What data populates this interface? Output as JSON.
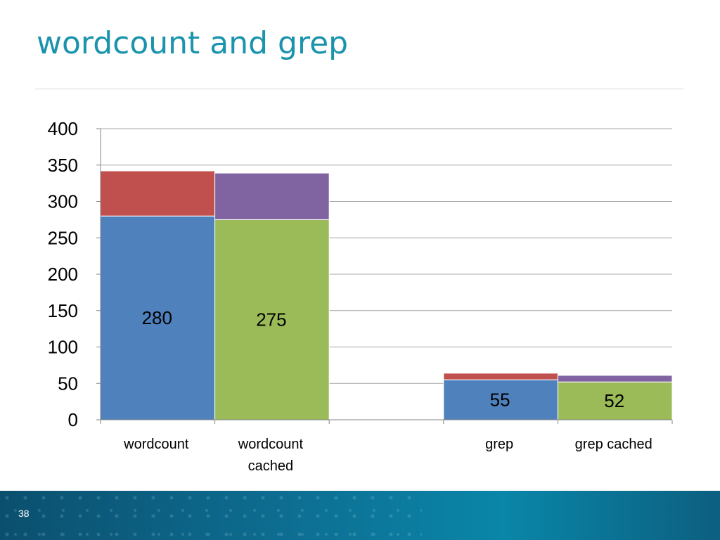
{
  "slide": {
    "title": "wordcount and grep",
    "page_number": "38"
  },
  "chart_data": {
    "type": "bar",
    "stacked": true,
    "categories": [
      "wordcount",
      "wordcount\ncached",
      "",
      "grep",
      "grep cached"
    ],
    "series": [
      {
        "values": [
          280,
          0,
          0,
          55,
          0
        ],
        "color": "#4f81bd",
        "show_labels": true
      },
      {
        "values": [
          62,
          0,
          0,
          9,
          0
        ],
        "color": "#c0504d"
      },
      {
        "values": [
          0,
          275,
          0,
          0,
          52
        ],
        "color": "#9bbb59",
        "show_labels": true
      },
      {
        "values": [
          0,
          64,
          0,
          0,
          9
        ],
        "color": "#8064a2"
      }
    ],
    "ylim": [
      0,
      400
    ],
    "yticks": [
      0,
      50,
      100,
      150,
      200,
      250,
      300,
      350,
      400
    ],
    "grid": true,
    "legend": "none",
    "xlabel": "",
    "ylabel": ""
  }
}
